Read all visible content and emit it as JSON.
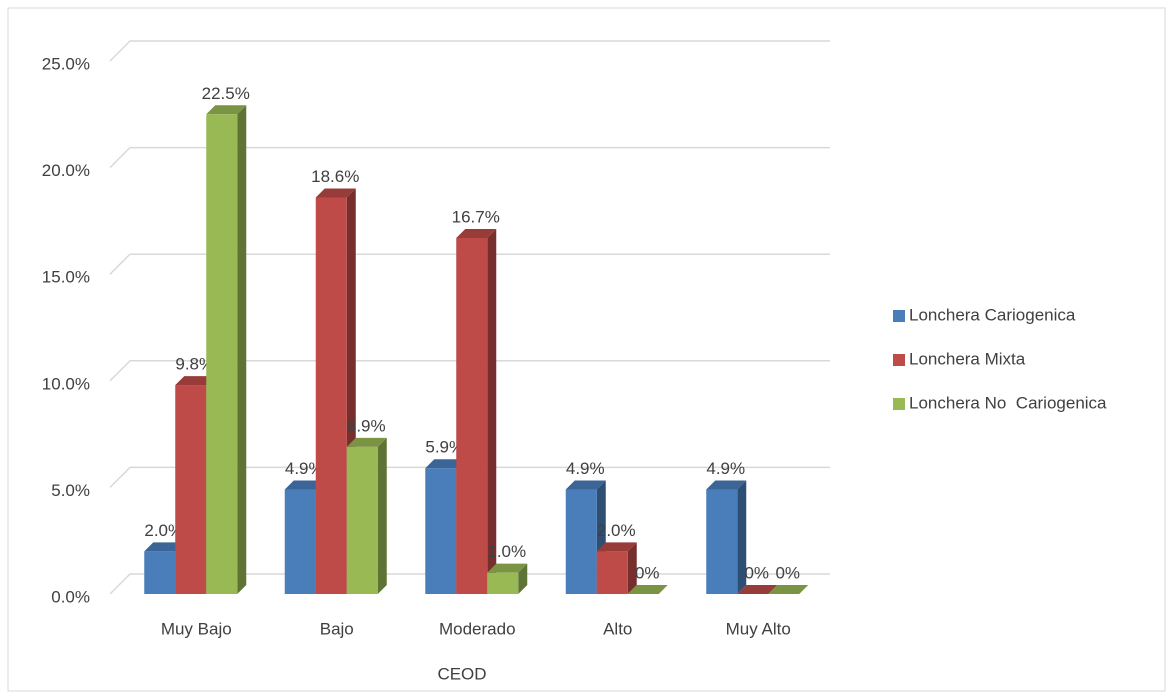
{
  "chart_data": {
    "type": "bar3d",
    "categories": [
      "Muy Bajo",
      "Bajo",
      "Moderado",
      "Alto",
      "Muy Alto"
    ],
    "x_label": "CEOD",
    "ylim": [
      0,
      25
    ],
    "yticks": [
      {
        "value": 0,
        "label": "0.0%"
      },
      {
        "value": 5,
        "label": "5.0%"
      },
      {
        "value": 10,
        "label": "10.0%"
      },
      {
        "value": 15,
        "label": "15.0%"
      },
      {
        "value": 20,
        "label": "20.0%"
      },
      {
        "value": 25,
        "label": "25.0%"
      }
    ],
    "grid": true,
    "legend": "right",
    "series": [
      {
        "name": "Lonchera Cariogenica",
        "color": "#4a7ebb",
        "values": [
          2.0,
          4.9,
          5.9,
          4.9,
          4.9
        ],
        "value_labels": [
          "2.0%",
          "4.9%",
          "5.9%",
          "4.9%",
          "4.9%"
        ]
      },
      {
        "name": "Lonchera Mixta",
        "color": "#be4b48",
        "values": [
          9.8,
          18.6,
          16.7,
          2.0,
          0
        ],
        "value_labels": [
          "9.8%",
          "18.6%",
          "16.7%",
          "2.0%",
          "0%"
        ]
      },
      {
        "name": "Lonchera No  Cariogenica",
        "color": "#98b954",
        "values": [
          22.5,
          6.9,
          1.0,
          0,
          0
        ],
        "value_labels": [
          "22.5%",
          "6.9%",
          "1.0%",
          "0%",
          "0%"
        ]
      }
    ]
  }
}
